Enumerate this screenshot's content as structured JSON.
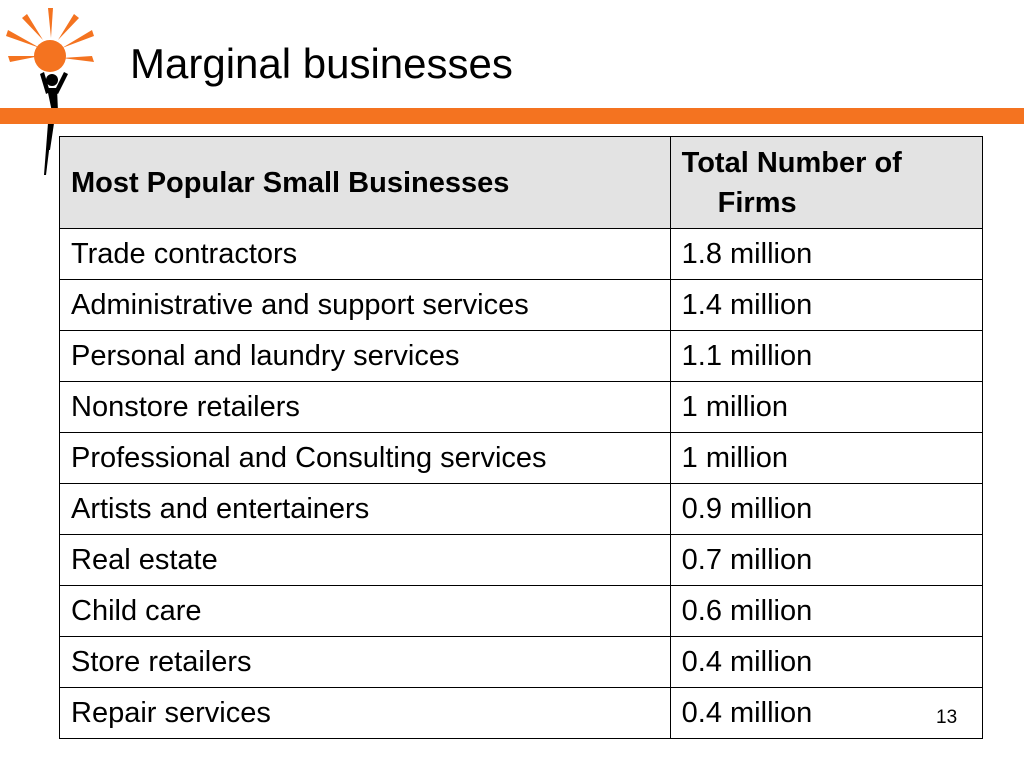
{
  "slide": {
    "title": "Marginal businesses",
    "page_number": "13"
  },
  "colors": {
    "accent_orange": "#F47320",
    "header_bg": "#E3E3E3",
    "logo_figure": "#000000"
  },
  "table": {
    "headers": {
      "business": "Most Popular Small Businesses",
      "total_line1": "Total Number of",
      "total_line2": "Firms"
    },
    "rows": [
      {
        "business": "Trade contractors",
        "total": "1.8 million"
      },
      {
        "business": "Administrative and support services",
        "total": "1.4 million"
      },
      {
        "business": "Personal and laundry services",
        "total": "1.1 million"
      },
      {
        "business": "Nonstore retailers",
        "total": "1 million"
      },
      {
        "business": "Professional and Consulting services",
        "total": "1 million"
      },
      {
        "business": "Artists and entertainers",
        "total": "0.9 million"
      },
      {
        "business": "Real estate",
        "total": "0.7 million"
      },
      {
        "business": "Child care",
        "total": "0.6 million"
      },
      {
        "business": "Store retailers",
        "total": "0.4 million"
      },
      {
        "business": "Repair services",
        "total": "0.4 million"
      }
    ]
  }
}
